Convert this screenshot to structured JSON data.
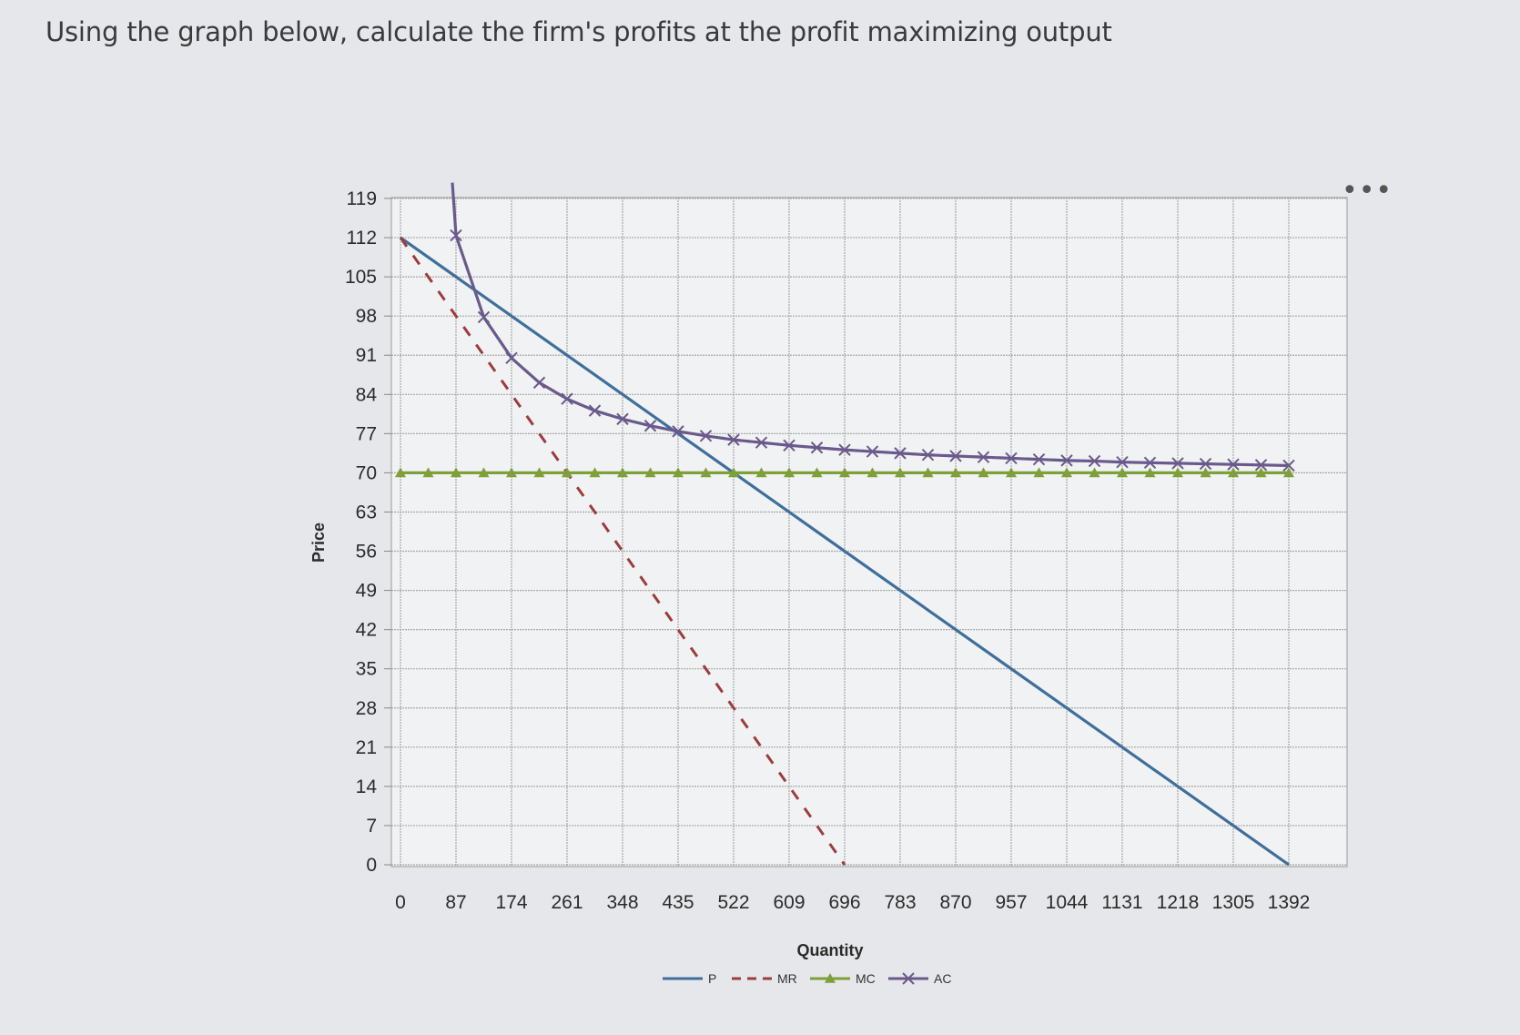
{
  "question": "Using the graph below, calculate the firm's profits at the profit maximizing output",
  "more_menu": "•••",
  "chart_data": {
    "type": "line",
    "xlabel": "Quantity",
    "ylabel": "Price",
    "x_ticks": [
      0,
      87,
      174,
      261,
      348,
      435,
      522,
      609,
      696,
      783,
      870,
      957,
      1044,
      1131,
      1218,
      1305,
      1392
    ],
    "y_ticks": [
      0,
      7,
      14,
      21,
      28,
      35,
      42,
      49,
      56,
      63,
      70,
      77,
      84,
      91,
      98,
      105,
      112,
      119
    ],
    "xlim": [
      0,
      1392
    ],
    "ylim": [
      0,
      119
    ],
    "grid": true,
    "legend_position": "bottom",
    "series": [
      {
        "name": "P",
        "color": "#3e6f9c",
        "style": "solid",
        "marker": "none",
        "x": [
          0,
          1392
        ],
        "y": [
          112,
          0
        ]
      },
      {
        "name": "MR",
        "color": "#9c3c3c",
        "style": "dashed",
        "marker": "none",
        "x": [
          0,
          696
        ],
        "y": [
          112,
          0
        ]
      },
      {
        "name": "MC",
        "color": "#7ea03a",
        "style": "solid",
        "marker": "triangle",
        "x": [
          0,
          43.5,
          87,
          130.5,
          174,
          217.5,
          261,
          304.5,
          348,
          391.5,
          435,
          478.5,
          522,
          565.5,
          609,
          652.5,
          696,
          739.5,
          783,
          826.5,
          870,
          913.5,
          957,
          1000.5,
          1044,
          1087.5,
          1131,
          1174.5,
          1218,
          1261.5,
          1305,
          1348.5,
          1392
        ],
        "y": [
          70,
          70,
          70,
          70,
          70,
          70,
          70,
          70,
          70,
          70,
          70,
          70,
          70,
          70,
          70,
          70,
          70,
          70,
          70,
          70,
          70,
          70,
          70,
          70,
          70,
          70,
          70,
          70,
          70,
          70,
          70,
          70,
          70
        ]
      },
      {
        "name": "AC",
        "color": "#6a5a8c",
        "style": "solid",
        "marker": "x",
        "x": [
          87,
          130.5,
          174,
          217.5,
          261,
          304.5,
          348,
          391.5,
          435,
          478.5,
          522,
          565.5,
          609,
          652.5,
          696,
          739.5,
          783,
          826.5,
          870,
          913.5,
          957,
          1000.5,
          1044,
          1087.5,
          1131,
          1174.5,
          1218,
          1261.5,
          1305,
          1348.5,
          1392
        ],
        "y": [
          112.4,
          97.8,
          90.5,
          86.1,
          83.2,
          81.1,
          79.6,
          78.4,
          77.4,
          76.6,
          75.9,
          75.4,
          74.9,
          74.5,
          74.1,
          73.8,
          73.5,
          73.2,
          73.0,
          72.8,
          72.6,
          72.4,
          72.2,
          72.1,
          71.9,
          71.8,
          71.7,
          71.6,
          71.5,
          71.4,
          71.3
        ]
      }
    ]
  }
}
